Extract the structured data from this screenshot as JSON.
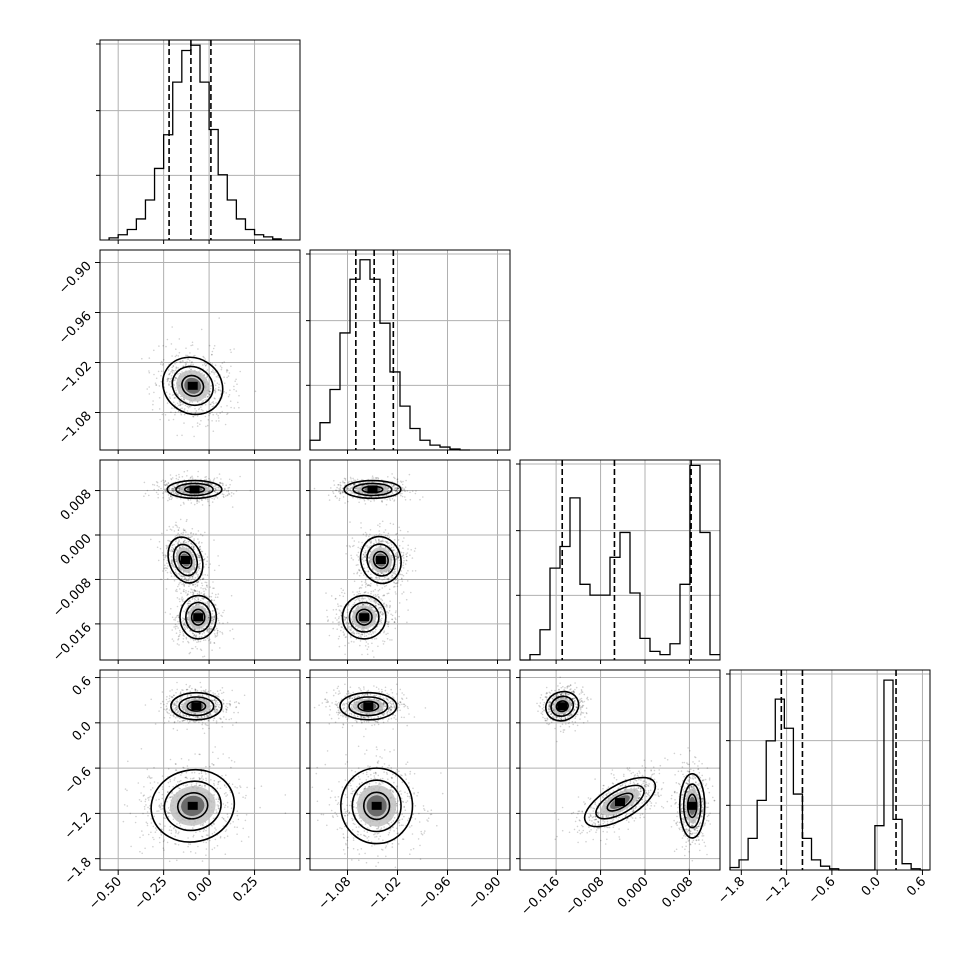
{
  "chart_data": {
    "type": "corner",
    "parameters": [
      {
        "range": [
          -0.6,
          0.5
        ],
        "ticks": [
          -0.5,
          -0.25,
          0.0,
          0.25
        ],
        "tick_labels": [
          "−0.50",
          "−0.25",
          "0.00",
          "0.25"
        ]
      },
      {
        "range": [
          -1.125,
          -0.885
        ],
        "ticks": [
          -1.08,
          -1.02,
          -0.96,
          -0.9
        ],
        "tick_labels": [
          "−1.08",
          "−1.02",
          "−0.96",
          "−0.90"
        ]
      },
      {
        "range": [
          -0.0225,
          0.0135
        ],
        "ticks": [
          -0.016,
          -0.008,
          0.0,
          0.008
        ],
        "tick_labels": [
          "−0.016",
          "−0.008",
          "0.000",
          "0.008"
        ]
      },
      {
        "range": [
          -1.95,
          0.7
        ],
        "ticks": [
          -1.8,
          -1.2,
          -0.6,
          0.0,
          0.6
        ],
        "tick_labels": [
          "−1.8",
          "−1.2",
          "−0.6",
          "0.0",
          "0.6"
        ]
      }
    ],
    "histograms": [
      {
        "bins": [
          -0.55,
          -0.5,
          -0.45,
          -0.4,
          -0.35,
          -0.3,
          -0.25,
          -0.2,
          -0.15,
          -0.1,
          -0.05,
          0.0,
          0.05,
          0.1,
          0.15,
          0.2,
          0.25,
          0.3,
          0.35,
          0.4
        ],
        "counts": [
          2,
          5,
          10,
          20,
          38,
          68,
          100,
          150,
          180,
          185,
          150,
          105,
          62,
          38,
          20,
          10,
          5,
          3,
          1
        ],
        "max": 190,
        "quantiles": [
          -0.22,
          -0.1,
          0.01
        ]
      },
      {
        "bins": [
          -1.125,
          -1.113,
          -1.101,
          -1.089,
          -1.077,
          -1.065,
          -1.053,
          -1.041,
          -1.029,
          -1.017,
          -1.005,
          -0.993,
          -0.981,
          -0.969,
          -0.957,
          -0.945,
          -0.933
        ],
        "counts": [
          10,
          28,
          62,
          120,
          175,
          195,
          175,
          130,
          80,
          45,
          22,
          10,
          5,
          3,
          1,
          0
        ],
        "max": 205,
        "quantiles": [
          -1.07,
          -1.048,
          -1.025
        ]
      },
      {
        "bins": [
          -0.0225,
          -0.0207,
          -0.0189,
          -0.0171,
          -0.0153,
          -0.0135,
          -0.0117,
          -0.0099,
          -0.0081,
          -0.0063,
          -0.0045,
          -0.0027,
          -0.0009,
          0.0009,
          0.0027,
          0.0045,
          0.0063,
          0.0081,
          0.0099,
          0.0117,
          0.0135
        ],
        "counts": [
          0,
          5,
          28,
          85,
          105,
          150,
          70,
          60,
          60,
          95,
          118,
          62,
          20,
          8,
          5,
          15,
          70,
          180,
          118,
          5
        ],
        "max": 185,
        "quantiles": [
          -0.0149,
          -0.0055,
          0.0083
        ]
      },
      {
        "bins": [
          -1.95,
          -1.83,
          -1.71,
          -1.59,
          -1.47,
          -1.35,
          -1.23,
          -1.11,
          -0.99,
          -0.87,
          -0.75,
          -0.63,
          -0.51,
          -0.39,
          -0.27,
          -0.15,
          -0.03,
          0.09,
          0.21,
          0.33,
          0.45,
          0.57,
          0.69
        ],
        "counts": [
          2,
          8,
          25,
          55,
          102,
          135,
          112,
          60,
          25,
          8,
          3,
          1,
          0,
          0,
          0,
          0,
          35,
          150,
          40,
          5,
          1,
          0
        ],
        "max": 158,
        "quantiles": [
          -1.27,
          -0.99,
          0.25
        ]
      }
    ],
    "joint": [
      {
        "row": 1,
        "col": 0,
        "modes": [
          {
            "center": [
              -0.09,
              -1.048
            ],
            "width": 0.34,
            "height": 0.066,
            "rotation_deg": 33
          }
        ],
        "scatter_sd": [
          0.11,
          0.025
        ],
        "scatter_rho": -0.75
      },
      {
        "row": 2,
        "col": 0,
        "modes": [
          {
            "center": [
              -0.08,
              0.0082
            ],
            "width": 0.3,
            "height": 0.0032
          },
          {
            "center": [
              -0.13,
              -0.0045
            ],
            "width": 0.18,
            "height": 0.0085,
            "rotation_deg": -20
          },
          {
            "center": [
              -0.06,
              -0.0148
            ],
            "width": 0.2,
            "height": 0.0078
          }
        ]
      },
      {
        "row": 2,
        "col": 1,
        "modes": [
          {
            "center": [
              -1.05,
              0.0082
            ],
            "width": 0.068,
            "height": 0.0032
          },
          {
            "center": [
              -1.04,
              -0.0045
            ],
            "width": 0.048,
            "height": 0.0085,
            "rotation_deg": -15
          },
          {
            "center": [
              -1.06,
              -0.0148
            ],
            "width": 0.052,
            "height": 0.0078
          }
        ]
      },
      {
        "row": 3,
        "col": 0,
        "modes": [
          {
            "center": [
              -0.07,
              0.22
            ],
            "width": 0.28,
            "height": 0.36
          },
          {
            "center": [
              -0.09,
              -1.1
            ],
            "width": 0.46,
            "height": 0.95,
            "rotation_deg": -12
          }
        ]
      },
      {
        "row": 3,
        "col": 1,
        "modes": [
          {
            "center": [
              -1.055,
              0.22
            ],
            "width": 0.068,
            "height": 0.36
          },
          {
            "center": [
              -1.045,
              -1.1
            ],
            "width": 0.086,
            "height": 1.0
          }
        ]
      },
      {
        "row": 3,
        "col": 2,
        "modes": [
          {
            "center": [
              -0.0149,
              0.22
            ],
            "width": 0.006,
            "height": 0.38,
            "rotation_deg": -20
          },
          {
            "center": [
              -0.0045,
              -1.05
            ],
            "width": 0.006,
            "height": 1.05,
            "rotation_deg": 60
          },
          {
            "center": [
              0.0085,
              -1.1
            ],
            "width": 0.0045,
            "height": 0.85
          }
        ]
      }
    ]
  }
}
